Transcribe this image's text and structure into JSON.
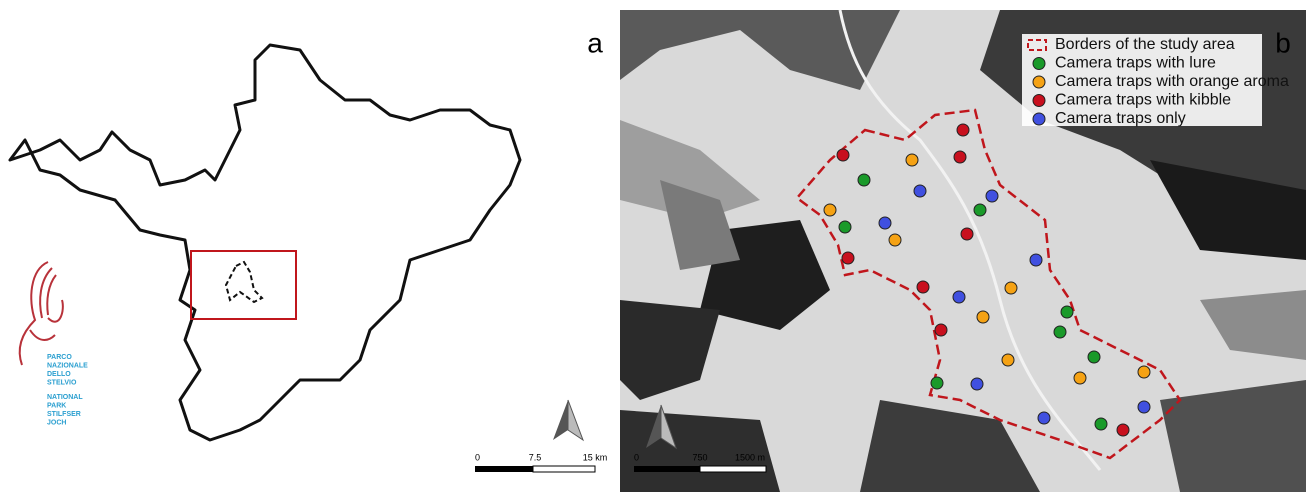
{
  "panel_a": {
    "label": "a",
    "scale_bar": [
      "0",
      "7.5",
      "15 km"
    ],
    "logo": {
      "italian": [
        "PARCO",
        "NAZIONALE",
        "DELLO",
        "STELVIO"
      ],
      "other": [
        "NATIONAL",
        "PARK",
        "STILFSER",
        "JOCH"
      ]
    }
  },
  "panel_b": {
    "label": "b",
    "legend": [
      {
        "label": "Borders of the study area",
        "color": "#c0161c"
      },
      {
        "label": "Camera traps with lure",
        "color": "#1a9a2a"
      },
      {
        "label": "Camera traps with orange aroma",
        "color": "#f5a214"
      },
      {
        "label": "Camera traps with kibble",
        "color": "#c8101e"
      },
      {
        "label": "Camera traps only",
        "color": "#4050e0"
      }
    ],
    "scale_bar": [
      "0",
      "750",
      "1500 m"
    ]
  }
}
